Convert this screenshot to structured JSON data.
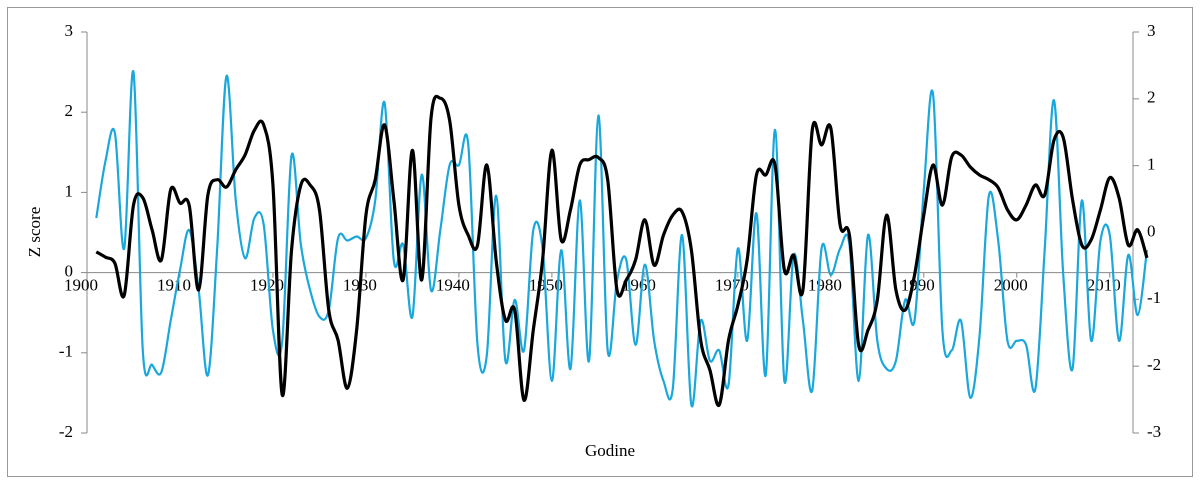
{
  "chart_data": {
    "type": "line",
    "xlabel": "Godine",
    "ylabel": "Z score",
    "xlim": [
      1900,
      2012.5
    ],
    "xticks": [
      1900,
      1910,
      1920,
      1930,
      1940,
      1950,
      1960,
      1970,
      1980,
      1990,
      2000,
      2010
    ],
    "ylim": [
      -2,
      3
    ],
    "yticks": [
      -2,
      -1,
      0,
      1,
      2,
      3
    ],
    "y2lim": [
      -3,
      3
    ],
    "y2ticks": [
      -3,
      -2,
      -1,
      0,
      1,
      2,
      3
    ],
    "x": [
      1901,
      1902,
      1903,
      1904,
      1905,
      1906,
      1907,
      1908,
      1909,
      1910,
      1911,
      1912,
      1913,
      1914,
      1915,
      1916,
      1917,
      1918,
      1919,
      1920,
      1921,
      1922,
      1923,
      1924,
      1925,
      1926,
      1927,
      1928,
      1929,
      1930,
      1931,
      1932,
      1933,
      1934,
      1935,
      1936,
      1937,
      1938,
      1939,
      1940,
      1941,
      1942,
      1943,
      1944,
      1945,
      1946,
      1947,
      1948,
      1949,
      1950,
      1951,
      1952,
      1953,
      1954,
      1955,
      1956,
      1957,
      1958,
      1959,
      1960,
      1961,
      1962,
      1963,
      1964,
      1965,
      1966,
      1967,
      1968,
      1969,
      1970,
      1971,
      1972,
      1973,
      1974,
      1975,
      1976,
      1977,
      1978,
      1979,
      1980,
      1981,
      1982,
      1983,
      1984,
      1985,
      1986,
      1987,
      1988,
      1989,
      1990,
      1991,
      1992,
      1993,
      1994,
      1995,
      1996,
      1997,
      1998,
      1999,
      2000,
      2001,
      2002,
      2003,
      2004,
      2005,
      2006,
      2007,
      2008,
      2009,
      2010,
      2011,
      2012,
      2013,
      2014
    ],
    "series": [
      {
        "color": "#1aa7dc",
        "values": [
          0.68,
          1.4,
          1.74,
          0.3,
          2.5,
          -0.97,
          -1.15,
          -1.24,
          -0.6,
          0.03,
          0.53,
          -0.2,
          -1.28,
          0.3,
          2.45,
          0.9,
          0.18,
          0.68,
          0.6,
          -0.72,
          -0.85,
          1.46,
          0.35,
          -0.22,
          -0.55,
          -0.47,
          0.43,
          0.4,
          0.45,
          0.43,
          0.9,
          2.12,
          0.15,
          0.35,
          -0.55,
          1.22,
          -0.22,
          0.53,
          1.34,
          1.34,
          1.6,
          -0.9,
          -1.03,
          0.96,
          -1.1,
          -0.34,
          -0.97,
          0.53,
          0.3,
          -1.35,
          0.28,
          -1.2,
          0.9,
          -1.1,
          1.96,
          -0.97,
          -0.1,
          0.16,
          -0.9,
          0.1,
          -0.85,
          -1.35,
          -1.45,
          0.47,
          -1.65,
          -0.6,
          -1.1,
          -0.97,
          -1.4,
          0.3,
          -0.85,
          0.74,
          -1.28,
          1.78,
          -1.35,
          0.22,
          -0.6,
          -1.47,
          0.3,
          -0.03,
          0.3,
          0.35,
          -1.35,
          0.47,
          -0.85,
          -1.2,
          -1.1,
          -0.34,
          -0.6,
          1.03,
          2.22,
          -0.72,
          -0.97,
          -0.6,
          -1.56,
          -0.78,
          0.96,
          0.4,
          -0.85,
          -0.85,
          -0.9,
          -1.45,
          0.28,
          2.15,
          -0.03,
          -1.2,
          0.9,
          -0.85,
          0.4,
          0.47,
          -0.85,
          0.22,
          -0.53,
          0.28
        ]
      },
      {
        "color": "#000000",
        "axis": "y2",
        "values": [
          -0.29,
          -0.37,
          -0.46,
          -0.94,
          0.41,
          0.52,
          0.04,
          -0.41,
          0.64,
          0.44,
          0.4,
          -0.86,
          0.56,
          0.79,
          0.68,
          0.94,
          1.16,
          1.53,
          1.61,
          0.71,
          -2.43,
          -0.26,
          0.71,
          0.71,
          0.34,
          -1.16,
          -1.61,
          -2.33,
          -1.46,
          0.26,
          0.79,
          1.61,
          0.49,
          -0.71,
          1.23,
          -0.71,
          1.71,
          2.01,
          1.68,
          0.41,
          -0.04,
          -0.19,
          1.01,
          -0.41,
          -1.31,
          -1.16,
          -2.51,
          -1.46,
          -0.41,
          1.23,
          -0.11,
          0.34,
          1.01,
          1.09,
          1.12,
          0.79,
          -0.86,
          -0.71,
          -0.41,
          0.19,
          -0.49,
          -0.04,
          0.26,
          0.31,
          -0.26,
          -1.61,
          -2.06,
          -2.58,
          -1.61,
          -1.09,
          -0.41,
          0.86,
          0.86,
          1.01,
          -0.56,
          -0.34,
          -0.86,
          1.53,
          1.31,
          1.56,
          0.11,
          -0.04,
          -1.69,
          -1.46,
          -1.01,
          0.26,
          -0.86,
          -1.16,
          -0.64,
          0.26,
          1.01,
          0.41,
          1.13,
          1.16,
          0.98,
          0.86,
          0.79,
          0.67,
          0.34,
          0.19,
          0.41,
          0.71,
          0.56,
          1.38,
          1.42,
          0.49,
          -0.19,
          -0.11,
          0.34,
          0.82,
          0.52,
          -0.19,
          0.04,
          -0.38
        ]
      }
    ]
  }
}
